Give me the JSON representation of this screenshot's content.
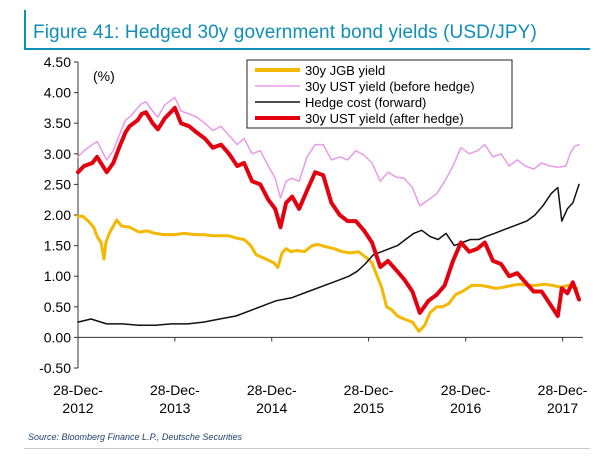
{
  "figure": {
    "title": "Figure 41: Hedged 30y government bond yields (USD/JPY)",
    "source": "Source: Bloomberg Finance L.P., Deutsche Securities"
  },
  "chart_data": {
    "type": "line",
    "ylabel": "(%)",
    "ylim": [
      -0.5,
      4.5
    ],
    "yticks": [
      "4.50",
      "4.00",
      "3.50",
      "3.00",
      "2.50",
      "2.00",
      "1.50",
      "1.00",
      "0.50",
      "0.00",
      "-0.50"
    ],
    "ytick_values": [
      4.5,
      4.0,
      3.5,
      3.0,
      2.5,
      2.0,
      1.5,
      1.0,
      0.5,
      0.0,
      -0.5
    ],
    "xlim": [
      "2012-12-28",
      "2018-03-15"
    ],
    "xticks": [
      {
        "date": "2012-12-28",
        "line1": "28-Dec-",
        "line2": "2012"
      },
      {
        "date": "2013-12-28",
        "line1": "28-Dec-",
        "line2": "2013"
      },
      {
        "date": "2014-12-28",
        "line1": "28-Dec-",
        "line2": "2014"
      },
      {
        "date": "2015-12-28",
        "line1": "28-Dec-",
        "line2": "2015"
      },
      {
        "date": "2016-12-28",
        "line1": "28-Dec-",
        "line2": "2016"
      },
      {
        "date": "2017-12-28",
        "line1": "28-Dec-",
        "line2": "2017"
      }
    ],
    "legend_position": "top-right",
    "grid": false,
    "series": [
      {
        "name": "30y JGB yield",
        "color": "#f5b800",
        "points": [
          [
            "2012-12-28",
            1.98
          ],
          [
            "2013-01-15",
            1.98
          ],
          [
            "2013-02-05",
            1.9
          ],
          [
            "2013-02-25",
            1.8
          ],
          [
            "2013-03-10",
            1.65
          ],
          [
            "2013-03-25",
            1.55
          ],
          [
            "2013-04-05",
            1.28
          ],
          [
            "2013-04-12",
            1.55
          ],
          [
            "2013-04-25",
            1.7
          ],
          [
            "2013-05-10",
            1.82
          ],
          [
            "2013-05-23",
            1.92
          ],
          [
            "2013-06-10",
            1.82
          ],
          [
            "2013-07-10",
            1.8
          ],
          [
            "2013-08-15",
            1.72
          ],
          [
            "2013-09-15",
            1.74
          ],
          [
            "2013-10-15",
            1.7
          ],
          [
            "2013-11-15",
            1.68
          ],
          [
            "2013-12-28",
            1.68
          ],
          [
            "2014-02-01",
            1.7
          ],
          [
            "2014-03-15",
            1.68
          ],
          [
            "2014-04-15",
            1.68
          ],
          [
            "2014-05-20",
            1.66
          ],
          [
            "2014-06-20",
            1.66
          ],
          [
            "2014-07-20",
            1.66
          ],
          [
            "2014-08-20",
            1.62
          ],
          [
            "2014-09-15",
            1.6
          ],
          [
            "2014-10-10",
            1.5
          ],
          [
            "2014-10-30",
            1.35
          ],
          [
            "2014-11-25",
            1.3
          ],
          [
            "2015-01-05",
            1.22
          ],
          [
            "2015-01-20",
            1.14
          ],
          [
            "2015-02-05",
            1.38
          ],
          [
            "2015-02-20",
            1.45
          ],
          [
            "2015-03-10",
            1.4
          ],
          [
            "2015-04-01",
            1.42
          ],
          [
            "2015-04-30",
            1.4
          ],
          [
            "2015-05-30",
            1.5
          ],
          [
            "2015-06-20",
            1.52
          ],
          [
            "2015-07-20",
            1.48
          ],
          [
            "2015-08-20",
            1.45
          ],
          [
            "2015-09-20",
            1.4
          ],
          [
            "2015-10-20",
            1.38
          ],
          [
            "2015-11-20",
            1.4
          ],
          [
            "2015-12-20",
            1.3
          ],
          [
            "2016-01-10",
            1.22
          ],
          [
            "2016-01-29",
            1.0
          ],
          [
            "2016-02-15",
            0.82
          ],
          [
            "2016-03-05",
            0.5
          ],
          [
            "2016-03-25",
            0.45
          ],
          [
            "2016-04-15",
            0.35
          ],
          [
            "2016-05-10",
            0.3
          ],
          [
            "2016-06-10",
            0.25
          ],
          [
            "2016-07-05",
            0.1
          ],
          [
            "2016-07-27",
            0.2
          ],
          [
            "2016-08-15",
            0.4
          ],
          [
            "2016-09-10",
            0.5
          ],
          [
            "2016-10-01",
            0.5
          ],
          [
            "2016-10-25",
            0.55
          ],
          [
            "2016-11-20",
            0.7
          ],
          [
            "2016-12-15",
            0.75
          ],
          [
            "2017-01-20",
            0.85
          ],
          [
            "2017-02-20",
            0.85
          ],
          [
            "2017-03-20",
            0.83
          ],
          [
            "2017-04-20",
            0.8
          ],
          [
            "2017-05-20",
            0.82
          ],
          [
            "2017-06-20",
            0.85
          ],
          [
            "2017-07-20",
            0.87
          ],
          [
            "2017-08-20",
            0.85
          ],
          [
            "2017-09-20",
            0.85
          ],
          [
            "2017-10-20",
            0.87
          ],
          [
            "2017-11-20",
            0.85
          ],
          [
            "2017-12-20",
            0.82
          ],
          [
            "2018-01-20",
            0.85
          ],
          [
            "2018-02-20",
            0.8
          ]
        ]
      },
      {
        "name": "30y UST yield (before hedge)",
        "color": "#e89be8",
        "points": [
          [
            "2012-12-28",
            2.95
          ],
          [
            "2013-01-20",
            3.05
          ],
          [
            "2013-02-20",
            3.15
          ],
          [
            "2013-03-10",
            3.2
          ],
          [
            "2013-04-15",
            2.9
          ],
          [
            "2013-05-10",
            3.05
          ],
          [
            "2013-06-01",
            3.3
          ],
          [
            "2013-06-25",
            3.55
          ],
          [
            "2013-07-10",
            3.6
          ],
          [
            "2013-08-10",
            3.75
          ],
          [
            "2013-08-25",
            3.82
          ],
          [
            "2013-09-10",
            3.85
          ],
          [
            "2013-10-05",
            3.7
          ],
          [
            "2013-10-25",
            3.6
          ],
          [
            "2013-11-20",
            3.8
          ],
          [
            "2013-12-28",
            3.92
          ],
          [
            "2014-01-20",
            3.7
          ],
          [
            "2014-02-20",
            3.65
          ],
          [
            "2014-03-20",
            3.6
          ],
          [
            "2014-04-20",
            3.5
          ],
          [
            "2014-05-20",
            3.38
          ],
          [
            "2014-06-20",
            3.45
          ],
          [
            "2014-07-20",
            3.3
          ],
          [
            "2014-08-20",
            3.15
          ],
          [
            "2014-09-15",
            3.25
          ],
          [
            "2014-10-15",
            3.0
          ],
          [
            "2014-11-15",
            3.05
          ],
          [
            "2014-12-15",
            2.8
          ],
          [
            "2015-01-10",
            2.6
          ],
          [
            "2015-01-30",
            2.28
          ],
          [
            "2015-02-20",
            2.55
          ],
          [
            "2015-03-15",
            2.6
          ],
          [
            "2015-04-10",
            2.55
          ],
          [
            "2015-05-10",
            2.95
          ],
          [
            "2015-06-10",
            3.15
          ],
          [
            "2015-07-10",
            3.15
          ],
          [
            "2015-08-10",
            2.9
          ],
          [
            "2015-09-10",
            2.95
          ],
          [
            "2015-10-10",
            2.9
          ],
          [
            "2015-11-10",
            3.05
          ],
          [
            "2015-12-10",
            2.98
          ],
          [
            "2016-01-10",
            2.85
          ],
          [
            "2016-02-10",
            2.55
          ],
          [
            "2016-03-10",
            2.7
          ],
          [
            "2016-04-10",
            2.62
          ],
          [
            "2016-05-10",
            2.6
          ],
          [
            "2016-06-10",
            2.45
          ],
          [
            "2016-07-08",
            2.15
          ],
          [
            "2016-08-10",
            2.25
          ],
          [
            "2016-09-10",
            2.35
          ],
          [
            "2016-10-10",
            2.55
          ],
          [
            "2016-11-10",
            2.8
          ],
          [
            "2016-12-10",
            3.1
          ],
          [
            "2017-01-10",
            3.0
          ],
          [
            "2017-02-10",
            3.05
          ],
          [
            "2017-03-10",
            3.15
          ],
          [
            "2017-04-10",
            2.95
          ],
          [
            "2017-05-10",
            3.0
          ],
          [
            "2017-06-10",
            2.8
          ],
          [
            "2017-07-10",
            2.9
          ],
          [
            "2017-08-10",
            2.8
          ],
          [
            "2017-09-10",
            2.75
          ],
          [
            "2017-10-10",
            2.85
          ],
          [
            "2017-11-10",
            2.8
          ],
          [
            "2017-12-10",
            2.78
          ],
          [
            "2018-01-10",
            2.8
          ],
          [
            "2018-01-25",
            3.0
          ],
          [
            "2018-02-10",
            3.12
          ],
          [
            "2018-02-28",
            3.15
          ]
        ]
      },
      {
        "name": "Hedge cost (forward)",
        "color": "#111111",
        "points": [
          [
            "2012-12-28",
            0.25
          ],
          [
            "2013-02-15",
            0.3
          ],
          [
            "2013-04-15",
            0.22
          ],
          [
            "2013-06-15",
            0.22
          ],
          [
            "2013-08-15",
            0.2
          ],
          [
            "2013-10-15",
            0.2
          ],
          [
            "2013-12-15",
            0.22
          ],
          [
            "2014-02-15",
            0.22
          ],
          [
            "2014-04-15",
            0.25
          ],
          [
            "2014-06-15",
            0.3
          ],
          [
            "2014-08-15",
            0.35
          ],
          [
            "2014-10-15",
            0.45
          ],
          [
            "2014-12-15",
            0.55
          ],
          [
            "2015-01-15",
            0.6
          ],
          [
            "2015-03-15",
            0.65
          ],
          [
            "2015-05-15",
            0.75
          ],
          [
            "2015-07-15",
            0.85
          ],
          [
            "2015-09-15",
            0.95
          ],
          [
            "2015-10-15",
            1.0
          ],
          [
            "2015-11-15",
            1.08
          ],
          [
            "2015-12-15",
            1.2
          ],
          [
            "2016-01-15",
            1.35
          ],
          [
            "2016-02-15",
            1.4
          ],
          [
            "2016-03-15",
            1.45
          ],
          [
            "2016-04-15",
            1.5
          ],
          [
            "2016-05-15",
            1.6
          ],
          [
            "2016-06-15",
            1.7
          ],
          [
            "2016-07-15",
            1.75
          ],
          [
            "2016-08-15",
            1.65
          ],
          [
            "2016-09-15",
            1.6
          ],
          [
            "2016-10-15",
            1.7
          ],
          [
            "2016-11-15",
            1.5
          ],
          [
            "2016-12-15",
            1.55
          ],
          [
            "2017-01-15",
            1.6
          ],
          [
            "2017-02-15",
            1.6
          ],
          [
            "2017-03-15",
            1.65
          ],
          [
            "2017-04-15",
            1.7
          ],
          [
            "2017-05-15",
            1.75
          ],
          [
            "2017-06-15",
            1.8
          ],
          [
            "2017-07-15",
            1.85
          ],
          [
            "2017-08-15",
            1.9
          ],
          [
            "2017-09-15",
            2.0
          ],
          [
            "2017-10-15",
            2.15
          ],
          [
            "2017-11-15",
            2.35
          ],
          [
            "2017-12-10",
            2.45
          ],
          [
            "2017-12-25",
            1.9
          ],
          [
            "2018-01-15",
            2.1
          ],
          [
            "2018-02-05",
            2.2
          ],
          [
            "2018-02-28",
            2.5
          ]
        ]
      },
      {
        "name": "30y UST yield (after hedge)",
        "color": "#e3000f",
        "points": [
          [
            "2012-12-28",
            2.7
          ],
          [
            "2013-01-20",
            2.8
          ],
          [
            "2013-02-20",
            2.85
          ],
          [
            "2013-03-10",
            2.95
          ],
          [
            "2013-04-15",
            2.7
          ],
          [
            "2013-05-10",
            2.85
          ],
          [
            "2013-06-01",
            3.1
          ],
          [
            "2013-06-25",
            3.35
          ],
          [
            "2013-07-10",
            3.45
          ],
          [
            "2013-08-10",
            3.55
          ],
          [
            "2013-08-25",
            3.65
          ],
          [
            "2013-09-10",
            3.68
          ],
          [
            "2013-10-05",
            3.5
          ],
          [
            "2013-10-25",
            3.4
          ],
          [
            "2013-11-20",
            3.58
          ],
          [
            "2013-12-28",
            3.75
          ],
          [
            "2014-01-20",
            3.5
          ],
          [
            "2014-02-20",
            3.45
          ],
          [
            "2014-03-20",
            3.35
          ],
          [
            "2014-04-20",
            3.25
          ],
          [
            "2014-05-20",
            3.1
          ],
          [
            "2014-06-20",
            3.15
          ],
          [
            "2014-07-20",
            3.0
          ],
          [
            "2014-08-20",
            2.8
          ],
          [
            "2014-09-15",
            2.85
          ],
          [
            "2014-10-15",
            2.55
          ],
          [
            "2014-11-15",
            2.5
          ],
          [
            "2014-12-15",
            2.25
          ],
          [
            "2015-01-10",
            2.1
          ],
          [
            "2015-01-30",
            1.8
          ],
          [
            "2015-02-20",
            2.2
          ],
          [
            "2015-03-15",
            2.3
          ],
          [
            "2015-04-10",
            2.1
          ],
          [
            "2015-05-10",
            2.4
          ],
          [
            "2015-06-10",
            2.7
          ],
          [
            "2015-07-10",
            2.65
          ],
          [
            "2015-08-10",
            2.2
          ],
          [
            "2015-09-10",
            2.0
          ],
          [
            "2015-10-10",
            1.9
          ],
          [
            "2015-11-10",
            1.9
          ],
          [
            "2015-12-10",
            1.75
          ],
          [
            "2016-01-10",
            1.55
          ],
          [
            "2016-02-10",
            1.15
          ],
          [
            "2016-03-10",
            1.25
          ],
          [
            "2016-04-10",
            1.1
          ],
          [
            "2016-05-10",
            0.95
          ],
          [
            "2016-06-10",
            0.75
          ],
          [
            "2016-07-08",
            0.4
          ],
          [
            "2016-08-10",
            0.6
          ],
          [
            "2016-09-10",
            0.7
          ],
          [
            "2016-10-10",
            0.85
          ],
          [
            "2016-11-10",
            1.25
          ],
          [
            "2016-12-10",
            1.55
          ],
          [
            "2017-01-10",
            1.4
          ],
          [
            "2017-02-10",
            1.45
          ],
          [
            "2017-03-10",
            1.55
          ],
          [
            "2017-04-10",
            1.25
          ],
          [
            "2017-05-10",
            1.2
          ],
          [
            "2017-06-10",
            1.0
          ],
          [
            "2017-07-10",
            1.05
          ],
          [
            "2017-08-10",
            0.9
          ],
          [
            "2017-09-10",
            0.75
          ],
          [
            "2017-10-10",
            0.75
          ],
          [
            "2017-11-10",
            0.55
          ],
          [
            "2017-12-10",
            0.35
          ],
          [
            "2017-12-25",
            0.8
          ],
          [
            "2018-01-15",
            0.72
          ],
          [
            "2018-02-05",
            0.9
          ],
          [
            "2018-02-28",
            0.62
          ]
        ]
      }
    ]
  }
}
